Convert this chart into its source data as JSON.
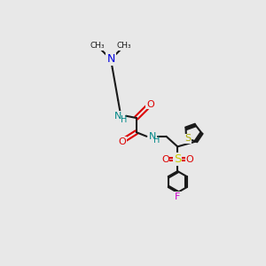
{
  "bg_color": "#e8e8e8",
  "bond_color": "#1a1a1a",
  "N_color": "#0000dd",
  "NH_color": "#008888",
  "O_color": "#dd0000",
  "S_thiophene_color": "#aaaa00",
  "S_sulfonyl_color": "#cccc00",
  "F_color": "#cc00cc",
  "lw": 1.5,
  "fs": 8.0,
  "xlim": [
    0,
    10
  ],
  "ylim": [
    0,
    10
  ]
}
